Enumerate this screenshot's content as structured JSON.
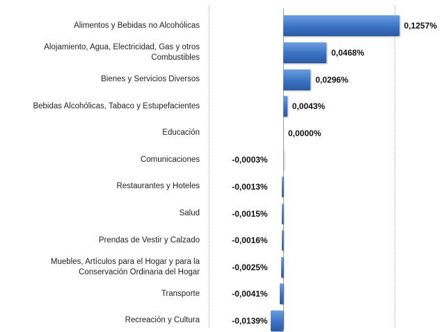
{
  "chart_data": {
    "type": "hbar",
    "categories": [
      "Alimentos y Bebidas no Alcohólicas",
      "Alojamiento, Agua, Electricidad, Gas y otros Combustibles",
      "Bienes y Servicios Diversos",
      "Bebidas Alcohólicas, Tabaco y Estupefacientes",
      "Educación",
      "Comunicaciones",
      "Restaurantes y Hoteles",
      "Salud",
      "Prendas de Vestir y Calzado",
      "Muebles, Artículos para el Hogar y para la Conservación Ordinaria del Hogar",
      "Transporte",
      "Recreación y Cultura"
    ],
    "values": [
      0.1257,
      0.0468,
      0.0296,
      0.0043,
      0.0,
      -0.0003,
      -0.0013,
      -0.0015,
      -0.0016,
      -0.0025,
      -0.0041,
      -0.0139
    ],
    "value_labels": [
      "0,1257%",
      "0,0468%",
      "0,0296%",
      "0,0043%",
      "0,0000%",
      "-0,0003%",
      "-0,0013%",
      "-0,0015%",
      "-0,0016%",
      "-0,0025%",
      "-0,0041%",
      "-0,0139%"
    ],
    "color": "#3a73c4",
    "xlim": [
      -0.08,
      0.16
    ]
  }
}
